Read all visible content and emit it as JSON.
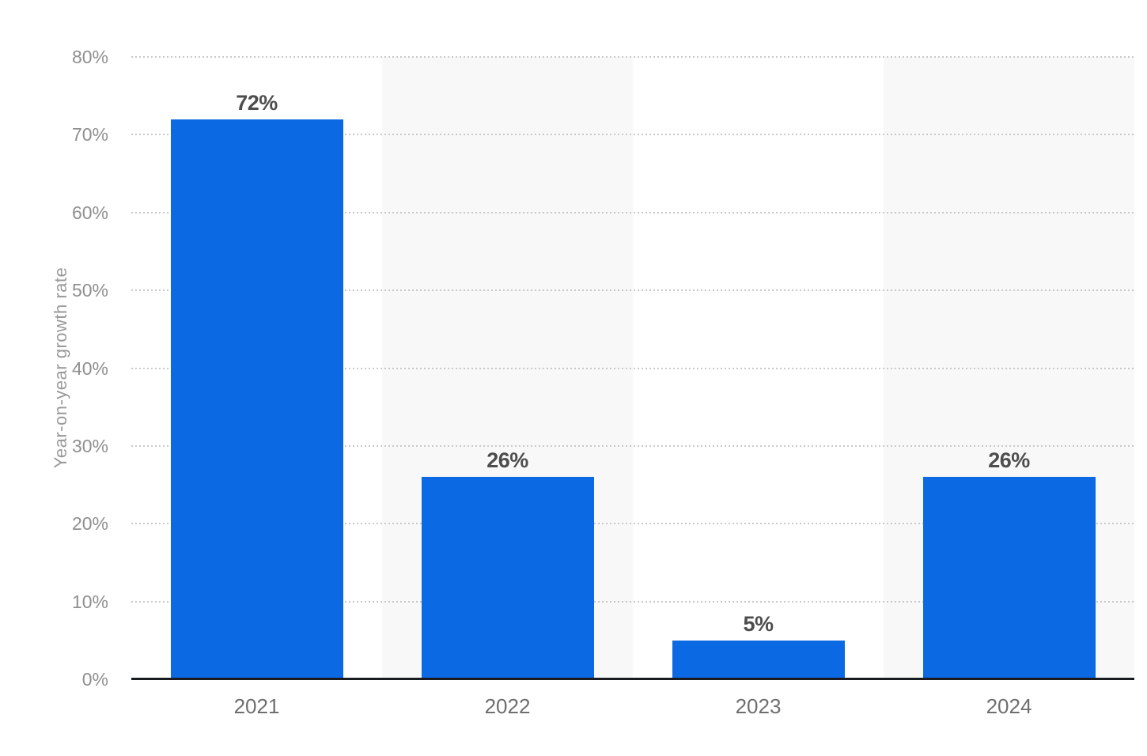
{
  "chart_data": {
    "type": "bar",
    "categories": [
      "2021",
      "2022",
      "2023",
      "2024"
    ],
    "values": [
      72,
      26,
      5,
      26
    ],
    "value_labels": [
      "72%",
      "26%",
      "5%",
      "26%"
    ],
    "title": "",
    "xlabel": "",
    "ylabel": "Year-on-year growth rate",
    "ylim": [
      0,
      80
    ],
    "ytick_step": 10,
    "ytick_labels": [
      "0%",
      "10%",
      "20%",
      "30%",
      "40%",
      "50%",
      "60%",
      "70%",
      "80%"
    ],
    "grid": "horizontal-dotted",
    "legend": "none",
    "plot_band_columns": [
      1,
      3
    ]
  },
  "colors": {
    "bar": "#0c69e4",
    "plot_band": "#f8f8f8",
    "gridline": "#c9c9c9",
    "axis_line": "#191b1f",
    "value_label": "#4d4d4d",
    "x_tick_label": "#6e6e6e",
    "y_tick_label": "#8f8f8f",
    "axis_title": "#999999",
    "background": "#ffffff"
  }
}
